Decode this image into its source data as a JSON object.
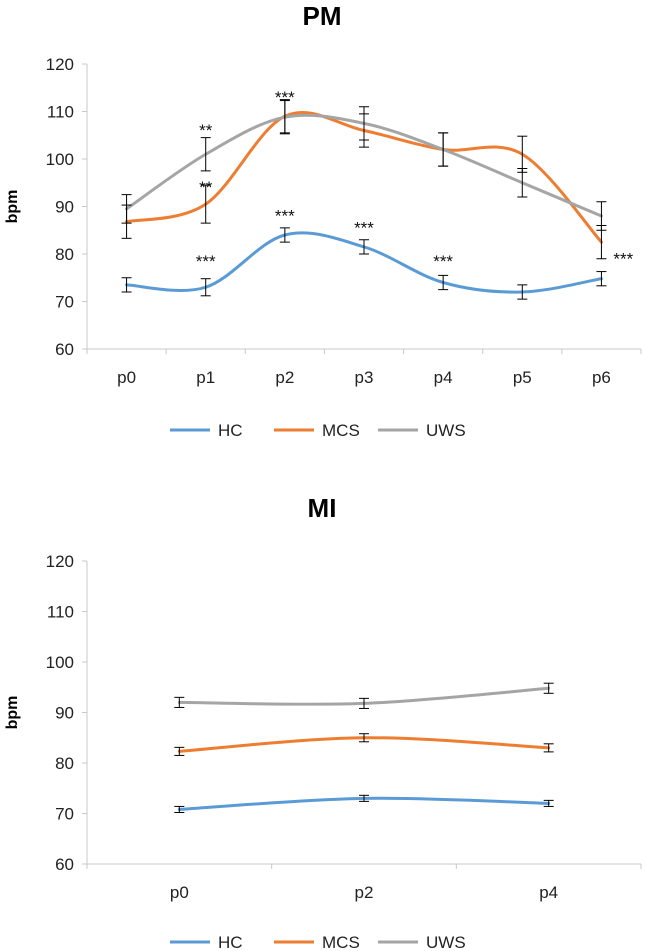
{
  "chart_data": [
    {
      "type": "line",
      "title": "PM",
      "ylabel": "bpm",
      "xlabel": "",
      "ylim": [
        60,
        120
      ],
      "yticks": [
        60,
        70,
        80,
        90,
        100,
        110,
        120
      ],
      "categories": [
        "p0",
        "p1",
        "p2",
        "p3",
        "p4",
        "p5",
        "p6"
      ],
      "series": [
        {
          "name": "HC",
          "color": "#5B9BD5",
          "values": [
            73.5,
            73,
            84,
            81.5,
            74,
            72,
            74.8
          ],
          "errors": [
            1.5,
            1.8,
            1.5,
            1.5,
            1.5,
            1.5,
            1.5
          ]
        },
        {
          "name": "MCS",
          "color": "#ED7D31",
          "values": [
            86.8,
            90.5,
            109,
            106,
            102,
            101,
            82.5
          ],
          "errors": [
            3.5,
            4,
            3.5,
            3.5,
            3.5,
            3.8,
            3.5
          ]
        },
        {
          "name": "UWS",
          "color": "#A5A5A5",
          "values": [
            89.5,
            101,
            108.8,
            107.5,
            102,
            95,
            88
          ],
          "errors": [
            3,
            3.5,
            3.5,
            3.5,
            3.5,
            3,
            3
          ]
        }
      ],
      "annotations": [
        {
          "category": "p1",
          "text": "**",
          "value": 106.5
        },
        {
          "category": "p1",
          "text": "**",
          "value": 94.5
        },
        {
          "category": "p1",
          "text": "***",
          "value": 79
        },
        {
          "category": "p2",
          "text": "***",
          "value": 113.5
        },
        {
          "category": "p2",
          "text": "***",
          "value": 88.5
        },
        {
          "category": "p3",
          "text": "***",
          "value": 86
        },
        {
          "category": "p4",
          "text": "***",
          "value": 79
        },
        {
          "category": "p6",
          "text": "***",
          "value": 79.5
        }
      ],
      "legend": "bottom"
    },
    {
      "type": "line",
      "title": "MI",
      "ylabel": "bpm",
      "xlabel": "",
      "ylim": [
        60,
        120
      ],
      "yticks": [
        60,
        70,
        80,
        90,
        100,
        110,
        120
      ],
      "categories": [
        "p0",
        "p2",
        "p4"
      ],
      "series": [
        {
          "name": "HC",
          "color": "#5B9BD5",
          "values": [
            70.8,
            73,
            72
          ],
          "errors": [
            0.6,
            0.6,
            0.6
          ]
        },
        {
          "name": "MCS",
          "color": "#ED7D31",
          "values": [
            82.3,
            85,
            83
          ],
          "errors": [
            0.8,
            0.8,
            0.8
          ]
        },
        {
          "name": "UWS",
          "color": "#A5A5A5",
          "values": [
            92,
            91.8,
            94.8
          ],
          "errors": [
            1,
            1,
            1
          ]
        }
      ],
      "annotations": [],
      "legend": "bottom"
    }
  ]
}
